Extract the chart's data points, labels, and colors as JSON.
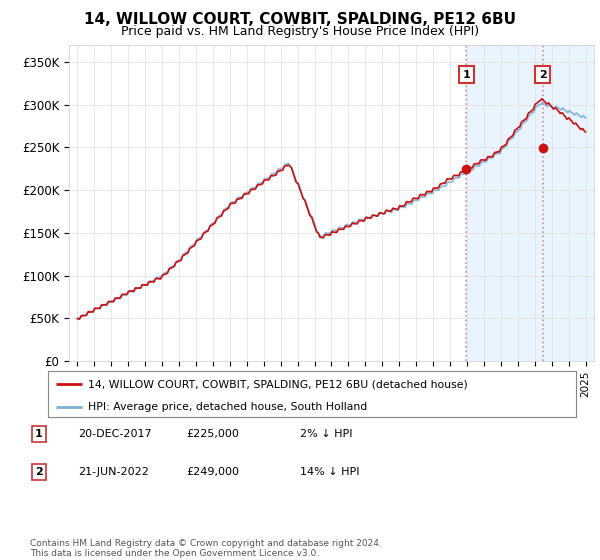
{
  "title": "14, WILLOW COURT, COWBIT, SPALDING, PE12 6BU",
  "subtitle": "Price paid vs. HM Land Registry's House Price Index (HPI)",
  "ylim": [
    0,
    370000
  ],
  "yticks": [
    0,
    50000,
    100000,
    150000,
    200000,
    250000,
    300000,
    350000
  ],
  "ytick_labels": [
    "£0",
    "£50K",
    "£100K",
    "£150K",
    "£200K",
    "£250K",
    "£300K",
    "£350K"
  ],
  "bg_color": "#f8f8f8",
  "plot_bg_color": "#ffffff",
  "hpi_color": "#7bafd4",
  "price_color": "#cc1111",
  "sale1_date": "20-DEC-2017",
  "sale1_price": 225000,
  "sale1_pct": "2%",
  "sale2_date": "21-JUN-2022",
  "sale2_price": 249000,
  "sale2_pct": "14%",
  "legend_line1": "14, WILLOW COURT, COWBIT, SPALDING, PE12 6BU (detached house)",
  "legend_line2": "HPI: Average price, detached house, South Holland",
  "footnote": "Contains HM Land Registry data © Crown copyright and database right 2024.\nThis data is licensed under the Open Government Licence v3.0.",
  "sale1_x": 2017.97,
  "sale2_x": 2022.47,
  "highlight_color": "#ddeeff",
  "vline_color": "#aaaacc"
}
